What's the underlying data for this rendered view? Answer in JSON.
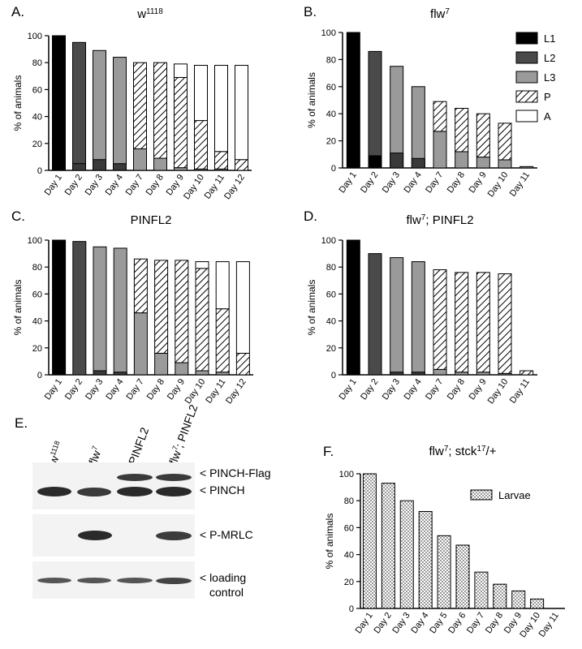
{
  "colors": {
    "L1": "#000000",
    "L2": "#4a4a4a",
    "L3": "#9a9a9a",
    "P": "hatch",
    "A": "#ffffff",
    "Larvae": "dots"
  },
  "legend_top": [
    {
      "key": "L1",
      "label": "L1"
    },
    {
      "key": "L2",
      "label": "L2"
    },
    {
      "key": "L3",
      "label": "L3"
    },
    {
      "key": "P",
      "label": "P"
    },
    {
      "key": "A",
      "label": "A"
    }
  ],
  "chart_data": [
    {
      "panel_letter": "A.",
      "type": "bar",
      "stacked": true,
      "title": {
        "base": "w",
        "sup": "1118",
        "after": ""
      },
      "ylabel": "% of animals",
      "ylim": [
        0,
        100
      ],
      "yticks": [
        0,
        20,
        40,
        60,
        80,
        100
      ],
      "categories": [
        "Day 1",
        "Day 2",
        "Day 3",
        "Day 4",
        "Day 7",
        "Day 8",
        "Day 9",
        "Day 10",
        "Day 11",
        "Day 12"
      ],
      "series": [
        {
          "key": "L1",
          "values": [
            100,
            0,
            0,
            0,
            0,
            0,
            0,
            0,
            0,
            0
          ]
        },
        {
          "key": "L2",
          "values": [
            0,
            95,
            0,
            0,
            0,
            0,
            0,
            0,
            0,
            0
          ]
        },
        {
          "key": "L3",
          "values": [
            0,
            0,
            89,
            84,
            16,
            9,
            2,
            1,
            1,
            0
          ]
        },
        {
          "key": "P",
          "values": [
            0,
            0,
            0,
            0,
            64,
            71,
            67,
            36,
            13,
            8
          ]
        },
        {
          "key": "A",
          "values": [
            0,
            0,
            0,
            0,
            0,
            0,
            10,
            41,
            64,
            70
          ]
        }
      ],
      "tiny_L2": [
        0,
        5,
        8,
        5,
        0,
        0,
        0,
        0,
        0,
        0
      ]
    },
    {
      "panel_letter": "B.",
      "type": "bar",
      "stacked": true,
      "title": {
        "base": "flw",
        "sup": "7",
        "after": ""
      },
      "ylabel": "% of animals",
      "ylim": [
        0,
        100
      ],
      "yticks": [
        0,
        20,
        40,
        60,
        80,
        100
      ],
      "categories": [
        "Day 1",
        "Day 2",
        "Day 3",
        "Day 4",
        "Day 7",
        "Day 8",
        "Day 9",
        "Day 10",
        "Day 11"
      ],
      "series": [
        {
          "key": "L1",
          "values": [
            100,
            9,
            0,
            0,
            0,
            0,
            0,
            0,
            0
          ]
        },
        {
          "key": "L2",
          "values": [
            0,
            77,
            0,
            0,
            0,
            0,
            0,
            0,
            0
          ]
        },
        {
          "key": "L3",
          "values": [
            0,
            0,
            75,
            60,
            27,
            12,
            8,
            6,
            1
          ]
        },
        {
          "key": "P",
          "values": [
            0,
            0,
            0,
            0,
            22,
            32,
            32,
            27,
            0
          ]
        },
        {
          "key": "A",
          "values": [
            0,
            0,
            0,
            0,
            0,
            0,
            0,
            0,
            0
          ]
        }
      ],
      "tiny_L2": [
        0,
        0,
        11,
        7,
        0,
        0,
        0,
        0,
        0
      ]
    },
    {
      "panel_letter": "C.",
      "type": "bar",
      "stacked": true,
      "title": {
        "base": "PINFL2",
        "sup": "",
        "after": ""
      },
      "ylabel": "% of animals",
      "ylim": [
        0,
        100
      ],
      "yticks": [
        0,
        20,
        40,
        60,
        80,
        100
      ],
      "categories": [
        "Day 1",
        "Day 2",
        "Day 3",
        "Day 4",
        "Day 7",
        "Day 8",
        "Day 9",
        "Day 10",
        "Day 11",
        "Day 12"
      ],
      "series": [
        {
          "key": "L1",
          "values": [
            100,
            0,
            0,
            0,
            0,
            0,
            0,
            0,
            0,
            0
          ]
        },
        {
          "key": "L2",
          "values": [
            0,
            99,
            0,
            0,
            0,
            0,
            0,
            0,
            0,
            0
          ]
        },
        {
          "key": "L3",
          "values": [
            0,
            0,
            95,
            94,
            46,
            16,
            9,
            3,
            2,
            0
          ]
        },
        {
          "key": "P",
          "values": [
            0,
            0,
            0,
            0,
            40,
            69,
            76,
            76,
            47,
            16
          ]
        },
        {
          "key": "A",
          "values": [
            0,
            0,
            0,
            0,
            0,
            0,
            0,
            5,
            35,
            68
          ]
        }
      ],
      "tiny_L2": [
        0,
        0,
        3,
        2,
        0,
        0,
        0,
        0,
        0,
        0
      ]
    },
    {
      "panel_letter": "D.",
      "type": "bar",
      "stacked": true,
      "title": {
        "base": "flw",
        "sup": "7",
        "after": "; PINFL2"
      },
      "ylabel": "% of animals",
      "ylim": [
        0,
        100
      ],
      "yticks": [
        0,
        20,
        40,
        60,
        80,
        100
      ],
      "categories": [
        "Day 1",
        "Day 2",
        "Day 3",
        "Day 4",
        "Day 7",
        "Day 8",
        "Day 9",
        "Day 10",
        "Day 11"
      ],
      "series": [
        {
          "key": "L1",
          "values": [
            100,
            0,
            0,
            0,
            0,
            0,
            0,
            0,
            0
          ]
        },
        {
          "key": "L2",
          "values": [
            0,
            90,
            0,
            0,
            0,
            0,
            0,
            0,
            0
          ]
        },
        {
          "key": "L3",
          "values": [
            0,
            0,
            87,
            84,
            4,
            2,
            2,
            1,
            0
          ]
        },
        {
          "key": "P",
          "values": [
            0,
            0,
            0,
            0,
            74,
            74,
            74,
            74,
            3
          ]
        },
        {
          "key": "A",
          "values": [
            0,
            0,
            0,
            0,
            0,
            0,
            0,
            0,
            0
          ]
        }
      ],
      "tiny_L2": [
        0,
        0,
        2,
        2,
        0,
        0,
        0,
        0,
        0
      ]
    },
    {
      "panel_letter": "F.",
      "type": "bar",
      "stacked": false,
      "title": {
        "base": "flw",
        "sup": "7",
        "after": "; stck",
        "sup2": "17",
        "after2": "/+"
      },
      "ylabel": "% of animals",
      "ylim": [
        0,
        100
      ],
      "yticks": [
        0,
        20,
        40,
        60,
        80,
        100
      ],
      "categories": [
        "Day 1",
        "Day 2",
        "Day 3",
        "Day 4",
        "Day 5",
        "Day 6",
        "Day 7",
        "Day 8",
        "Day 9",
        "Day 10",
        "Day 11"
      ],
      "series": [
        {
          "name": "Larvae",
          "key": "Larvae",
          "values": [
            100,
            93,
            80,
            72,
            54,
            47,
            27,
            18,
            13,
            7,
            0
          ]
        }
      ],
      "legend_label": "Larvae"
    }
  ],
  "blot": {
    "panel_letter": "E.",
    "lanes": [
      {
        "base": "w",
        "sup": "1118",
        "after": ""
      },
      {
        "base": "flw",
        "sup": "7",
        "after": ""
      },
      {
        "base": "PINFL2",
        "sup": "",
        "after": ""
      },
      {
        "base": "flw",
        "sup": "7",
        "after": "; PINFL2"
      }
    ],
    "labels": {
      "flag": "< PINCH-Flag",
      "pinch": "< PINCH",
      "mrlc": "< P-MRLC",
      "loading": "< loading",
      "control": "control"
    }
  }
}
